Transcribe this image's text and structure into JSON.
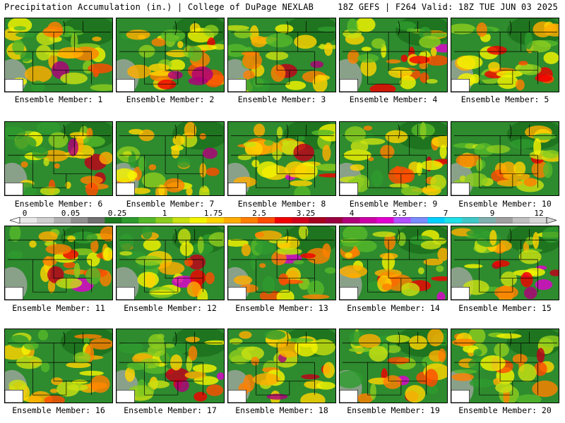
{
  "header": {
    "left": "Precipitation Accumulation (in.) | College of DuPage NEXLAB",
    "right": "18Z GEFS | F264 Valid: 18Z TUE JUN 03 2025"
  },
  "colorbar": {
    "labels": [
      "0",
      "0.05",
      "0.25",
      "1",
      "1.75",
      "2.5",
      "3.25",
      "4",
      "5.5",
      "7",
      "9",
      "12"
    ],
    "colors": [
      "#e8e8e8",
      "#cfcfcf",
      "#b0b0b0",
      "#909090",
      "#707070",
      "#1e7a1e",
      "#2e9b2e",
      "#55b82a",
      "#8ccc1e",
      "#c9e011",
      "#f4f400",
      "#ffd400",
      "#ffad00",
      "#ff8000",
      "#ff4d00",
      "#f00000",
      "#d0001a",
      "#a80020",
      "#9a0040",
      "#b0007a",
      "#cc00a8",
      "#e000d0",
      "#b050ff",
      "#7a8cff",
      "#00d0ff",
      "#20e0e8",
      "#40c8c8",
      "#80b0b0",
      "#a0a0a0",
      "#c0c0c0",
      "#d8d8d8"
    ],
    "heavy_tint": "#ff00ff",
    "mid_tint": "#ff9a00",
    "light_tint": "#e6f000"
  },
  "members": [
    {
      "label": "Ensemble Member: 1"
    },
    {
      "label": "Ensemble Member: 2"
    },
    {
      "label": "Ensemble Member: 3"
    },
    {
      "label": "Ensemble Member: 4"
    },
    {
      "label": "Ensemble Member: 5"
    },
    {
      "label": "Ensemble Member: 6"
    },
    {
      "label": "Ensemble Member: 7"
    },
    {
      "label": "Ensemble Member: 8"
    },
    {
      "label": "Ensemble Member: 9"
    },
    {
      "label": "Ensemble Member: 10"
    },
    {
      "label": "Ensemble Member: 11"
    },
    {
      "label": "Ensemble Member: 12"
    },
    {
      "label": "Ensemble Member: 13"
    },
    {
      "label": "Ensemble Member: 14"
    },
    {
      "label": "Ensemble Member: 15"
    },
    {
      "label": "Ensemble Member: 16"
    },
    {
      "label": "Ensemble Member: 17"
    },
    {
      "label": "Ensemble Member: 18"
    },
    {
      "label": "Ensemble Member: 19"
    },
    {
      "label": "Ensemble Member: 20"
    }
  ]
}
